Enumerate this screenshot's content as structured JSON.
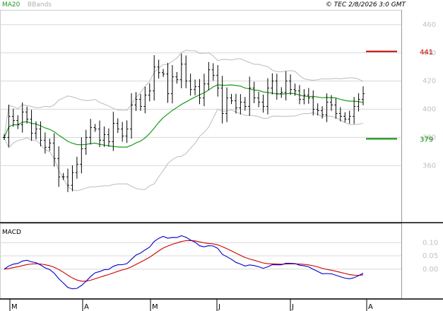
{
  "chart_data": {
    "type": "bar",
    "style": "ohlc",
    "header": {
      "legend_ma": "MA20",
      "legend_bbands": "BBands",
      "source": "© TEC 2/8/2026 3:0 GMT"
    },
    "price_axis": {
      "ticks": [
        "460",
        "440",
        "420",
        "400",
        "380",
        "360"
      ],
      "ylim": [
        320,
        470
      ]
    },
    "levels": [
      {
        "value": 441,
        "label": "441",
        "color": "#cc0000"
      },
      {
        "value": 379,
        "label": "379",
        "color": "#008800"
      }
    ],
    "months": [
      "M",
      "A",
      "M",
      "J",
      "J",
      "A"
    ],
    "macd": {
      "title": "MACD",
      "ticks": [
        "0.10",
        "0.05",
        "0.00"
      ],
      "ylim": [
        -0.11,
        0.17
      ]
    },
    "colors": {
      "ma": "#1a9a1a",
      "bbands": "#bbbbbb",
      "macd": "#0000cc",
      "signal": "#cc0000",
      "bars": "#000000"
    },
    "close": [
      380,
      395,
      392,
      389,
      398,
      393,
      383,
      386,
      378,
      373,
      376,
      365,
      352,
      352,
      346,
      355,
      361,
      372,
      380,
      387,
      386,
      378,
      382,
      377,
      390,
      386,
      381,
      386,
      403,
      407,
      402,
      410,
      413,
      430,
      426,
      425,
      411,
      423,
      421,
      432,
      420,
      414,
      416,
      408,
      418,
      428,
      424,
      415,
      397,
      408,
      406,
      401,
      405,
      402,
      415,
      408,
      405,
      402,
      415,
      420,
      411,
      412,
      420,
      414,
      413,
      407,
      410,
      408,
      400,
      399,
      396,
      405,
      403,
      397,
      395,
      393,
      395,
      402,
      407,
      411
    ]
  }
}
